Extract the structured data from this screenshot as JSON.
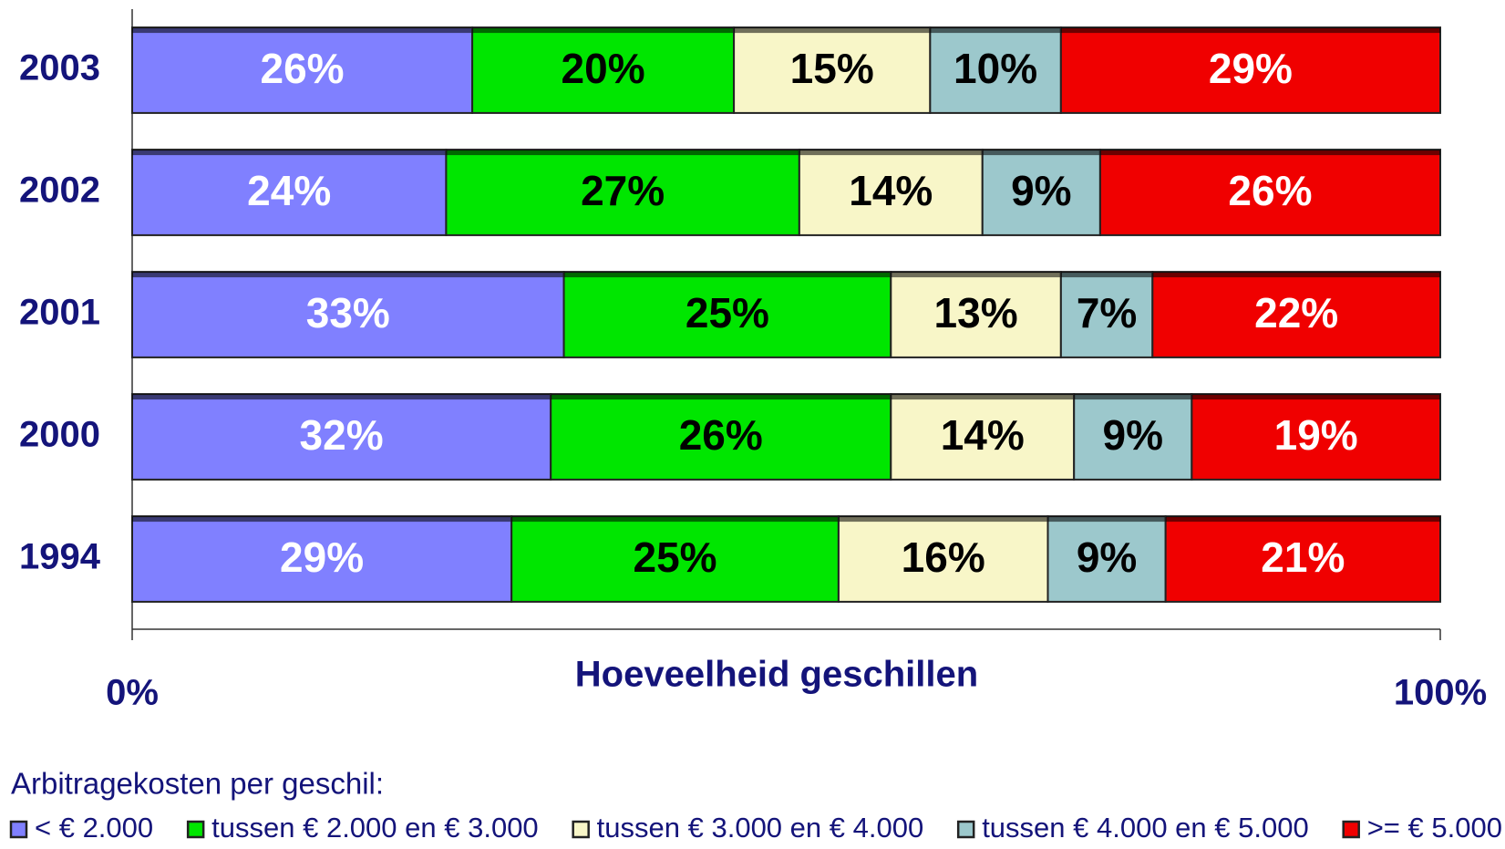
{
  "chart_data": {
    "type": "stacked-barh",
    "categories": [
      "2003",
      "2002",
      "2001",
      "2000",
      "1994"
    ],
    "series": [
      {
        "name": "< € 2.000",
        "color": "#8080ff",
        "label_color": "#ffffff",
        "values": [
          26,
          24,
          33,
          32,
          29
        ],
        "value_labels": [
          "26%",
          "24%",
          "33%",
          "32%",
          "29%"
        ]
      },
      {
        "name": "tussen € 2.000 en € 3.000",
        "color": "#00e600",
        "label_color": "#000000",
        "values": [
          20,
          27,
          25,
          26,
          25
        ],
        "value_labels": [
          "20%",
          "27%",
          "25%",
          "26%",
          "25%"
        ]
      },
      {
        "name": "tussen € 3.000 en € 4.000",
        "color": "#f8f6c8",
        "label_color": "#000000",
        "values": [
          15,
          14,
          13,
          14,
          16
        ],
        "value_labels": [
          "15%",
          "14%",
          "13%",
          "14%",
          "16%"
        ]
      },
      {
        "name": "tussen € 4.000 en € 5.000",
        "color": "#9cc8cc",
        "label_color": "#000000",
        "values": [
          10,
          9,
          7,
          9,
          9
        ],
        "value_labels": [
          "10%",
          "9%",
          "7%",
          "9%",
          "9%"
        ]
      },
      {
        "name": ">= € 5.000",
        "color": "#f00000",
        "label_color": "#ffffff",
        "values": [
          29,
          26,
          22,
          19,
          21
        ],
        "value_labels": [
          "29%",
          "26%",
          "22%",
          "19%",
          "21%"
        ]
      }
    ],
    "x_label": "Hoeveelheid geschillen",
    "legend_title": "Arbitragekosten per geschil:",
    "xlim": [
      0,
      100
    ],
    "xticks": [
      {
        "value": 0,
        "label": "0%"
      },
      {
        "value": 100,
        "label": "100%"
      }
    ]
  }
}
